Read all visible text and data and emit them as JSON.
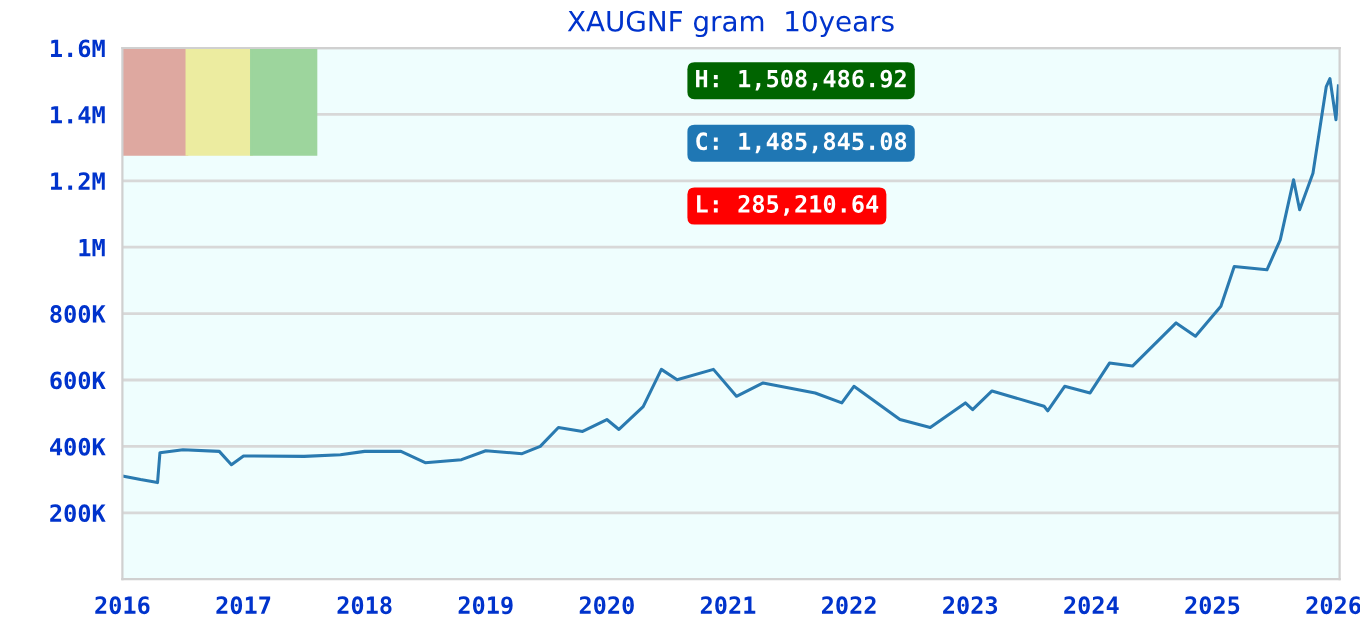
{
  "chart_data": {
    "type": "line",
    "title": "XAUGNF gram  10years",
    "x": [
      2016.0,
      2016.15,
      2016.29,
      2016.31,
      2016.5,
      2016.8,
      2016.9,
      2017.0,
      2017.5,
      2017.8,
      2018.0,
      2018.3,
      2018.5,
      2018.8,
      2019.0,
      2019.3,
      2019.45,
      2019.6,
      2019.8,
      2020.0,
      2020.1,
      2020.3,
      2020.45,
      2020.58,
      2020.88,
      2021.07,
      2021.29,
      2021.72,
      2021.94,
      2022.04,
      2022.42,
      2022.67,
      2022.96,
      2023.02,
      2023.18,
      2023.61,
      2023.64,
      2023.78,
      2023.99,
      2024.15,
      2024.34,
      2024.7,
      2024.86,
      2025.07,
      2025.18,
      2025.45,
      2025.56,
      2025.67,
      2025.72,
      2025.83,
      2025.94,
      2025.97,
      2026.02,
      2026.04
    ],
    "series": [
      {
        "color": "#2a7ab0",
        "values": [
          311000,
          300000,
          291000,
          381000,
          390000,
          385000,
          345000,
          371000,
          370000,
          375000,
          385000,
          385000,
          351000,
          360000,
          387000,
          378000,
          400000,
          457000,
          445000,
          481000,
          451000,
          520000,
          632000,
          601000,
          632000,
          551000,
          591000,
          561000,
          531000,
          581000,
          481000,
          457000,
          531000,
          511000,
          567000,
          521000,
          507000,
          581000,
          561000,
          651000,
          642000,
          772000,
          732000,
          822000,
          942000,
          932000,
          1022000,
          1203000,
          1113000,
          1223000,
          1484000,
          1508000,
          1384000,
          1486000
        ]
      }
    ],
    "xlim": [
      2016,
      2026.05
    ],
    "xticks": [
      2016,
      2017,
      2018,
      2019,
      2020,
      2021,
      2022,
      2023,
      2024,
      2025,
      2026
    ],
    "ylim": [
      0,
      1600000
    ],
    "yticks": [
      {
        "value": 200000,
        "label": "200K"
      },
      {
        "value": 400000,
        "label": "400K"
      },
      {
        "value": 600000,
        "label": "600K"
      },
      {
        "value": 800000,
        "label": "800K"
      },
      {
        "value": 1000000,
        "label": "1M"
      },
      {
        "value": 1200000,
        "label": "1.2M"
      },
      {
        "value": 1400000,
        "label": "1.4M"
      },
      {
        "value": 1600000,
        "label": "1.6M"
      }
    ],
    "grid": "y",
    "legend": false,
    "annotations": [
      "H: 1,508,486.92",
      "C: 1,485,845.08",
      "L: 285,210.64"
    ]
  }
}
